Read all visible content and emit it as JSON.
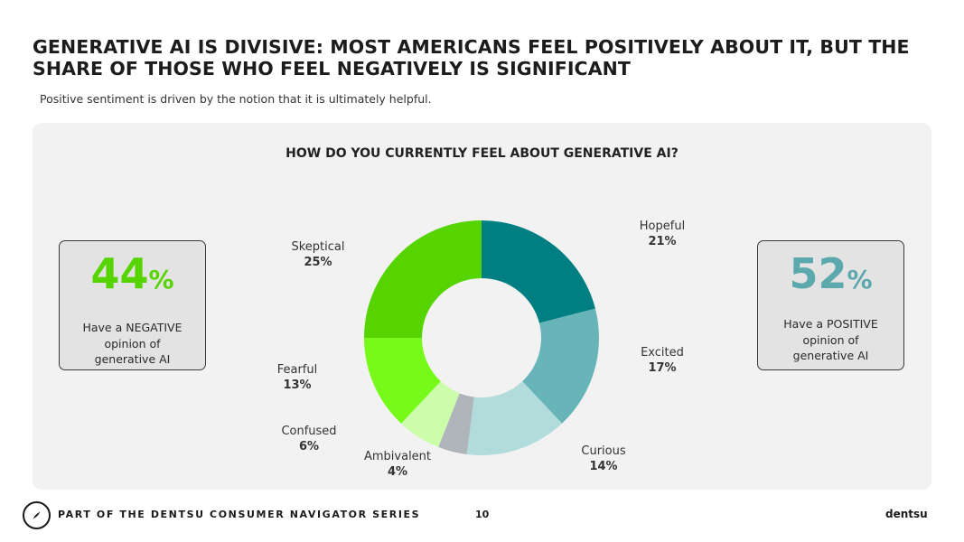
{
  "header": {
    "title": "GENERATIVE AI IS DIVISIVE: MOST AMERICANS FEEL POSITIVELY ABOUT IT, BUT THE SHARE OF THOSE WHO FEEL NEGATIVELY IS SIGNIFICANT",
    "subtitle": "Positive sentiment is driven by the notion that it is ultimately helpful."
  },
  "negative_card": {
    "value": "44",
    "unit": "%",
    "description": "Have a NEGATIVE opinion of generative AI",
    "color": "#55d400"
  },
  "positive_card": {
    "value": "52",
    "unit": "%",
    "description": "Have a POSITIVE opinion of generative AI",
    "color": "#5ba8ad"
  },
  "chart_data": {
    "type": "pie",
    "subtype": "donut",
    "title": "HOW DO YOU CURRENTLY FEEL ABOUT GENERATIVE AI?",
    "unit": "%",
    "slices": [
      {
        "label": "Hopeful",
        "value": 21,
        "color": "#007f82"
      },
      {
        "label": "Excited",
        "value": 17,
        "color": "#67b4b9"
      },
      {
        "label": "Curious",
        "value": 14,
        "color": "#b2dcdc"
      },
      {
        "label": "Ambivalent",
        "value": 4,
        "color": "#b0b4bb"
      },
      {
        "label": "Confused",
        "value": 6,
        "color": "#ccfdaa"
      },
      {
        "label": "Fearful",
        "value": 13,
        "color": "#77fa1a"
      },
      {
        "label": "Skeptical",
        "value": 25,
        "color": "#55d400"
      }
    ]
  },
  "footer": {
    "series": "PART OF THE DENTSU CONSUMER NAVIGATOR SERIES",
    "page_number": "10",
    "brand": "dentsu",
    "logo_icon": "compass-icon"
  }
}
